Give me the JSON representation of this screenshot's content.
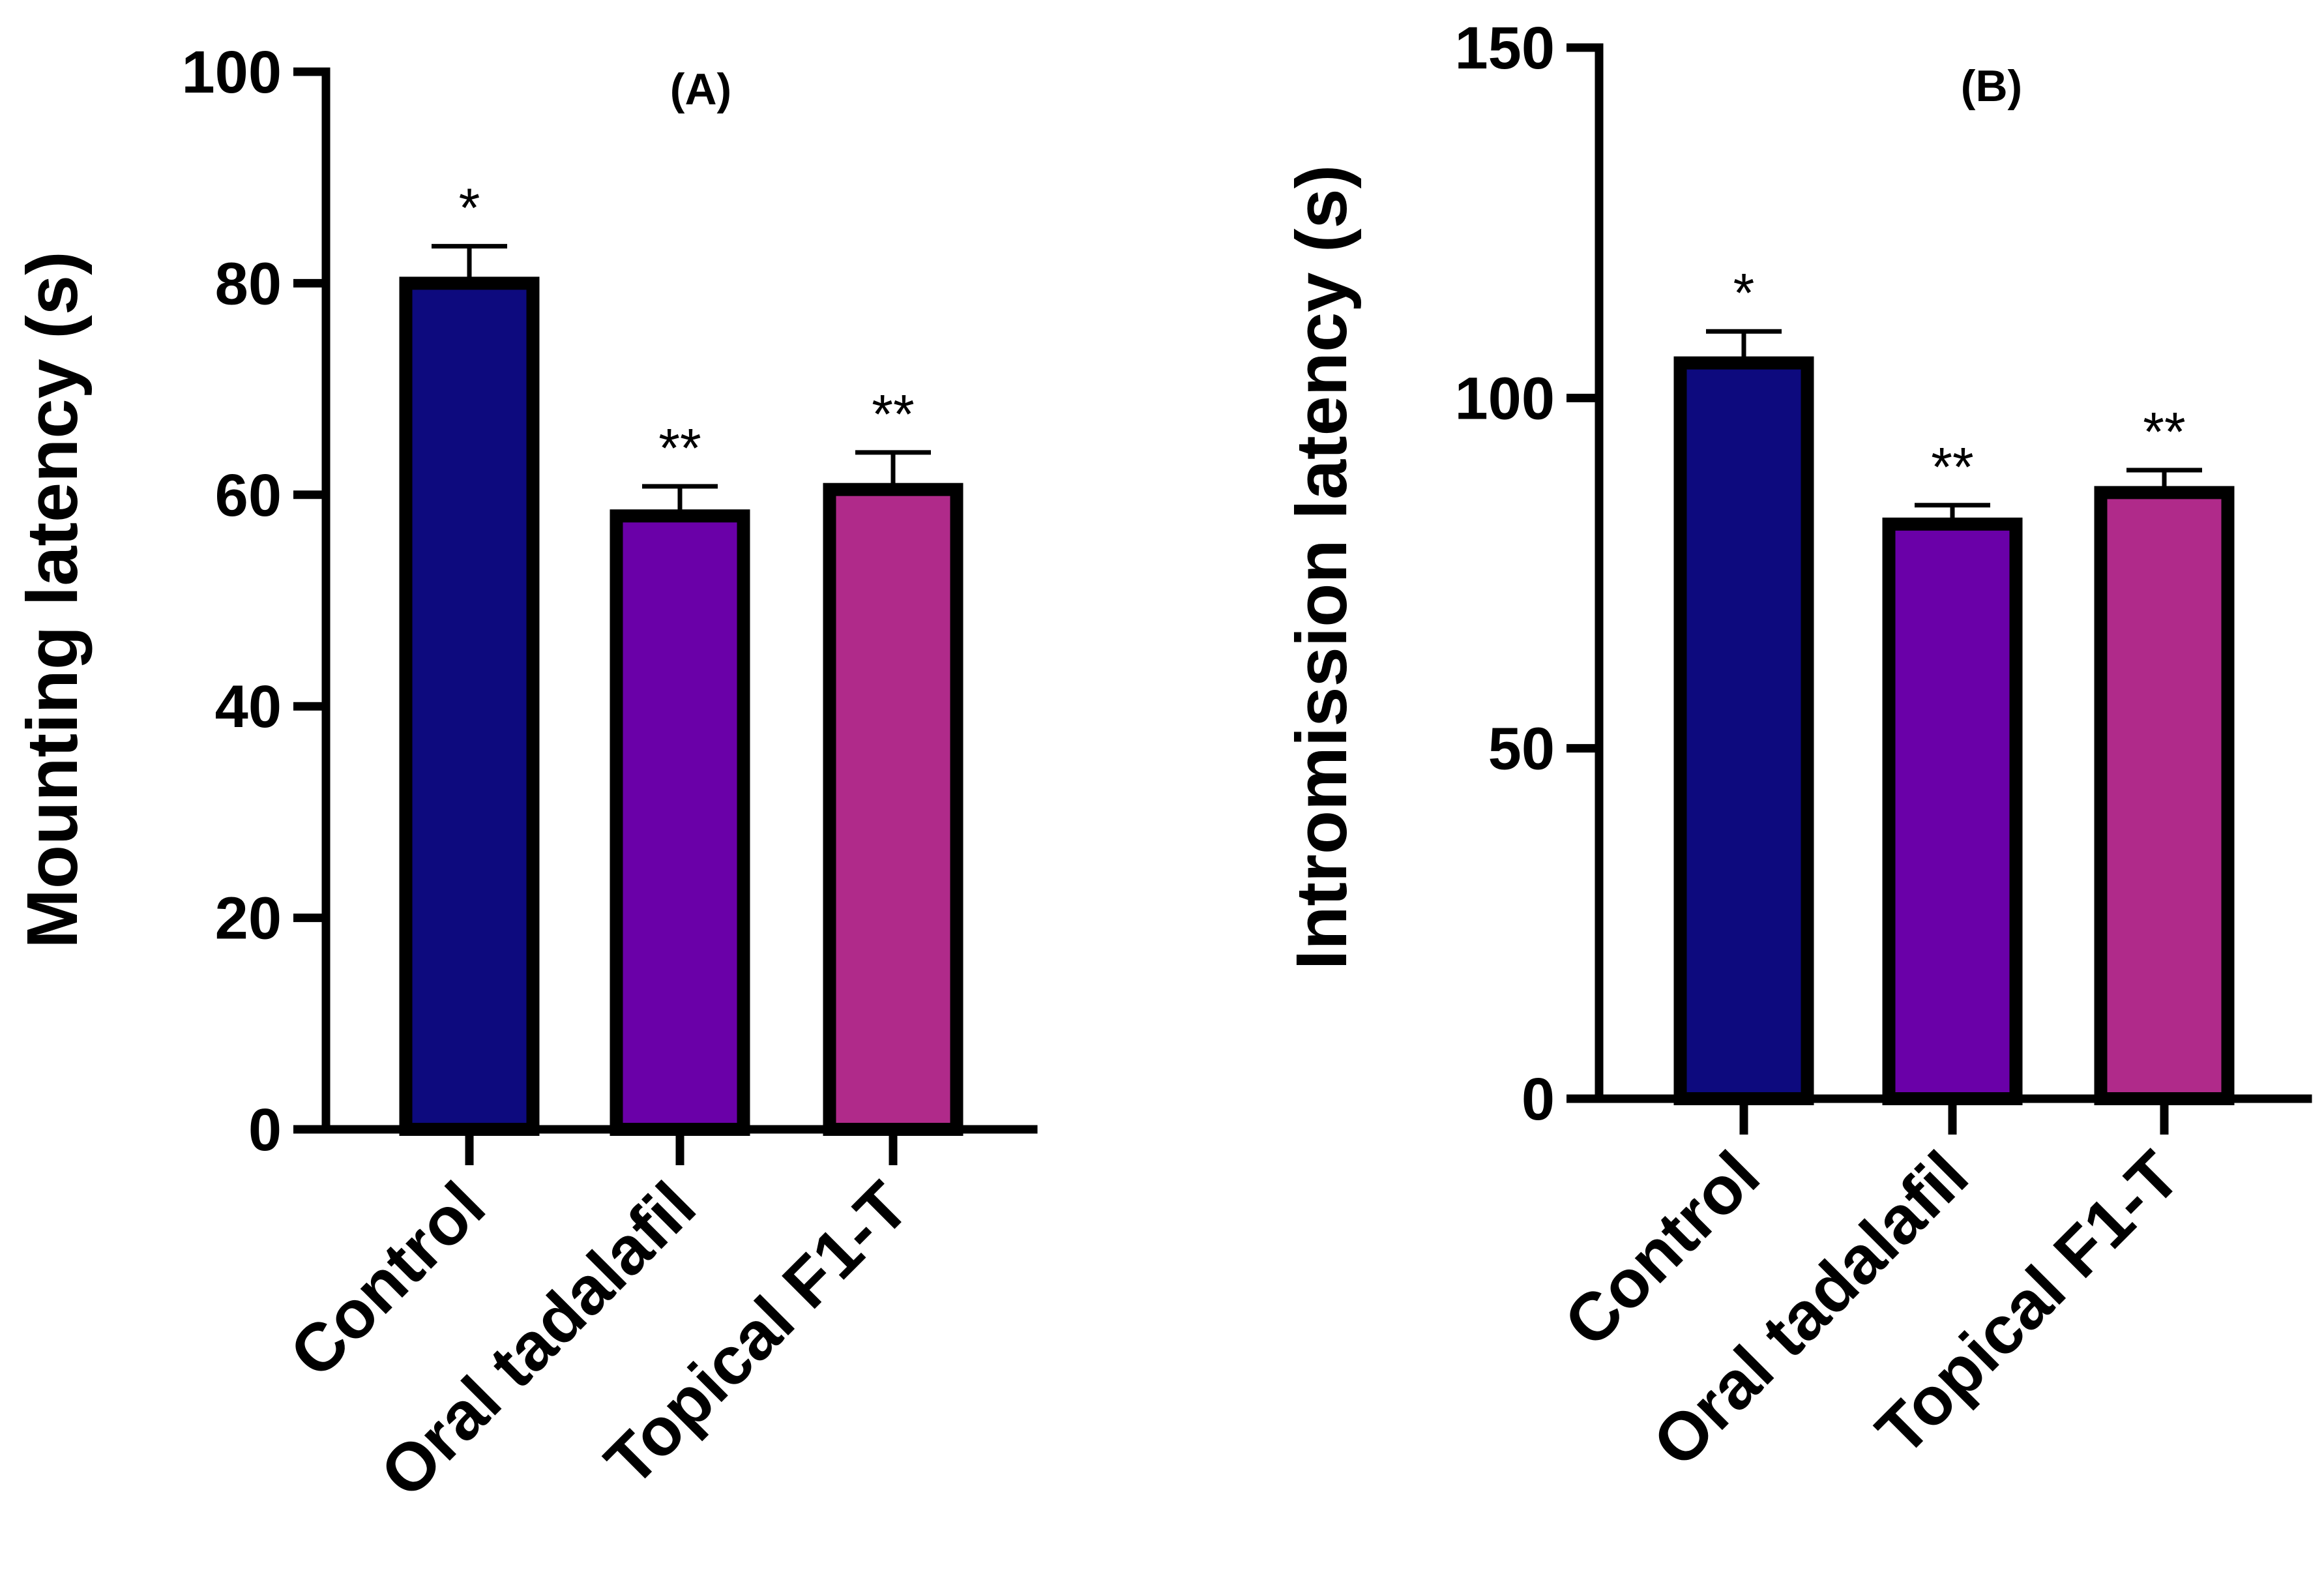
{
  "chart_data": [
    {
      "type": "bar",
      "title": "(A)",
      "xlabel": "",
      "ylabel": "Mounting latency (s)",
      "ylim": [
        0,
        100
      ],
      "yticks": [
        0,
        20,
        40,
        60,
        80,
        100
      ],
      "categories": [
        "Control",
        "Oral tadalafil",
        "Topical F1-T"
      ],
      "values": [
        80,
        58,
        60.5
      ],
      "errors": [
        3.5,
        2.8,
        3.5
      ],
      "significance": [
        "*",
        "**",
        "**"
      ],
      "colors": [
        "#0d0a7e",
        "#6a00a8",
        "#b02a8a"
      ],
      "grid": false,
      "legend": "none"
    },
    {
      "type": "bar",
      "title": "(B)",
      "xlabel": "",
      "ylabel": "Intromission latency (s)",
      "ylim": [
        0,
        150
      ],
      "yticks": [
        0,
        50,
        100,
        150
      ],
      "categories": [
        "Control",
        "Oral tadalafil",
        "Topical F1-T"
      ],
      "values": [
        105,
        82,
        86.5
      ],
      "errors": [
        4.5,
        2.7,
        3.2
      ],
      "significance": [
        "*",
        "**",
        "**"
      ],
      "colors": [
        "#0d0a7e",
        "#6a00a8",
        "#b02a8a"
      ],
      "grid": false,
      "legend": "none"
    }
  ]
}
